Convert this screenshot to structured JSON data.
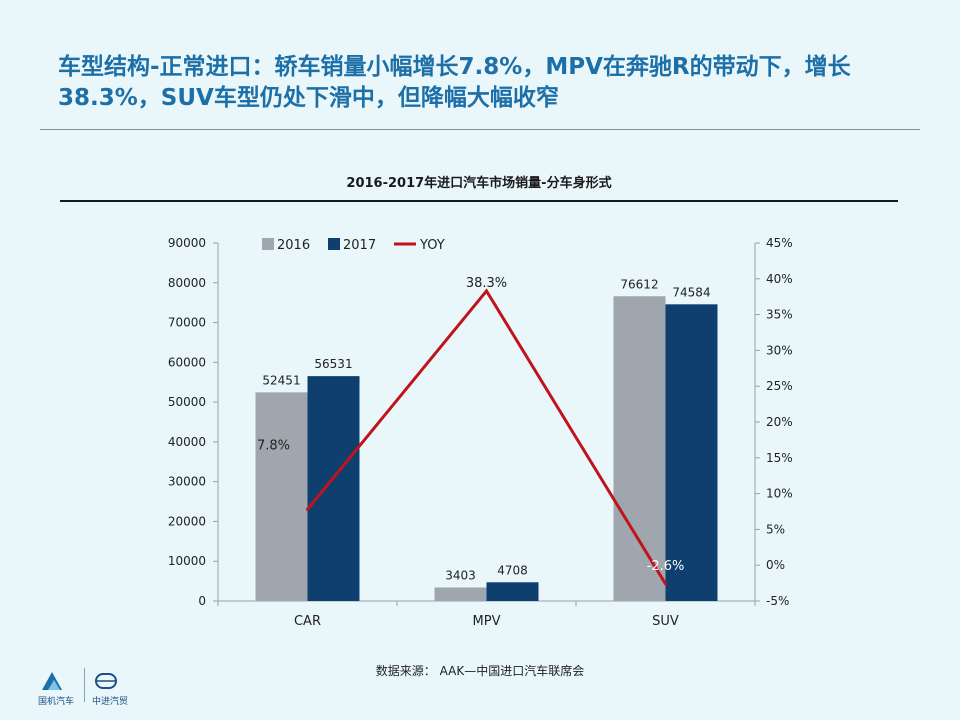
{
  "headline": {
    "line1": "车型结构-正常进口：轿车销量小幅增长7.8%，MPV在奔驰R的带动下，增长",
    "line2": "38.3%，SUV车型仍处下滑中，但降幅大幅收窄"
  },
  "chart_data": {
    "type": "bar",
    "title": "2016-2017年进口汽车市场销量-分车身形式",
    "categories": [
      "CAR",
      "MPV",
      "SUV"
    ],
    "series": [
      {
        "name": "2016",
        "type": "bar",
        "values": [
          52451,
          3403,
          76612
        ],
        "color": "#a0a6ad"
      },
      {
        "name": "2017",
        "type": "bar",
        "values": [
          56531,
          4708,
          74584
        ],
        "color": "#0e3f6e"
      },
      {
        "name": "YOY",
        "type": "line",
        "axis": "right",
        "values": [
          7.8,
          38.3,
          -2.6
        ],
        "labels": [
          "7.8%",
          "38.3%",
          "-2.6%"
        ],
        "color": "#c0141c"
      }
    ],
    "y_left": {
      "min": 0,
      "max": 90000,
      "ticks": [
        "0",
        "10000",
        "20000",
        "30000",
        "40000",
        "50000",
        "60000",
        "70000",
        "80000",
        "90000"
      ]
    },
    "y_right": {
      "min": -5,
      "max": 45,
      "ticks": [
        "-5%",
        "0%",
        "5%",
        "10%",
        "15%",
        "20%",
        "25%",
        "30%",
        "35%",
        "40%",
        "45%"
      ]
    },
    "legend_position": "top-left",
    "grid": false
  },
  "source": "数据来源： AAK—中国进口汽车联席会",
  "logos": {
    "left_label": "国机汽车",
    "right_label": "中进汽贸"
  },
  "colors": {
    "headline": "#1d6fa8",
    "background": "#e9f7fb"
  }
}
